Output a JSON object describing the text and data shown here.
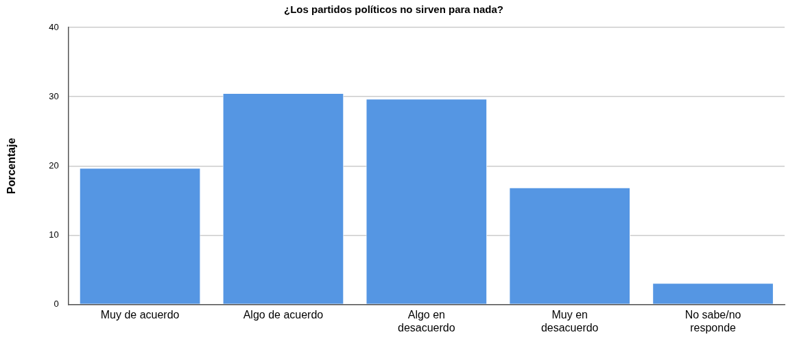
{
  "chart_data": {
    "type": "bar",
    "title": "¿Los partidos políticos no sirven para nada?",
    "ylabel": "Porcentaje",
    "categories": [
      "Muy de acuerdo",
      "Algo de acuerdo",
      "Algo en desacuerdo",
      "Muy en desacuerdo",
      "No sabe/no responde"
    ],
    "values": [
      19.7,
      30.5,
      29.7,
      16.9,
      3.1
    ],
    "color": "#5596e3",
    "ylim": [
      0,
      40
    ],
    "yticks": [
      0,
      10,
      20,
      30,
      40
    ],
    "grid": "y",
    "legend": false
  }
}
